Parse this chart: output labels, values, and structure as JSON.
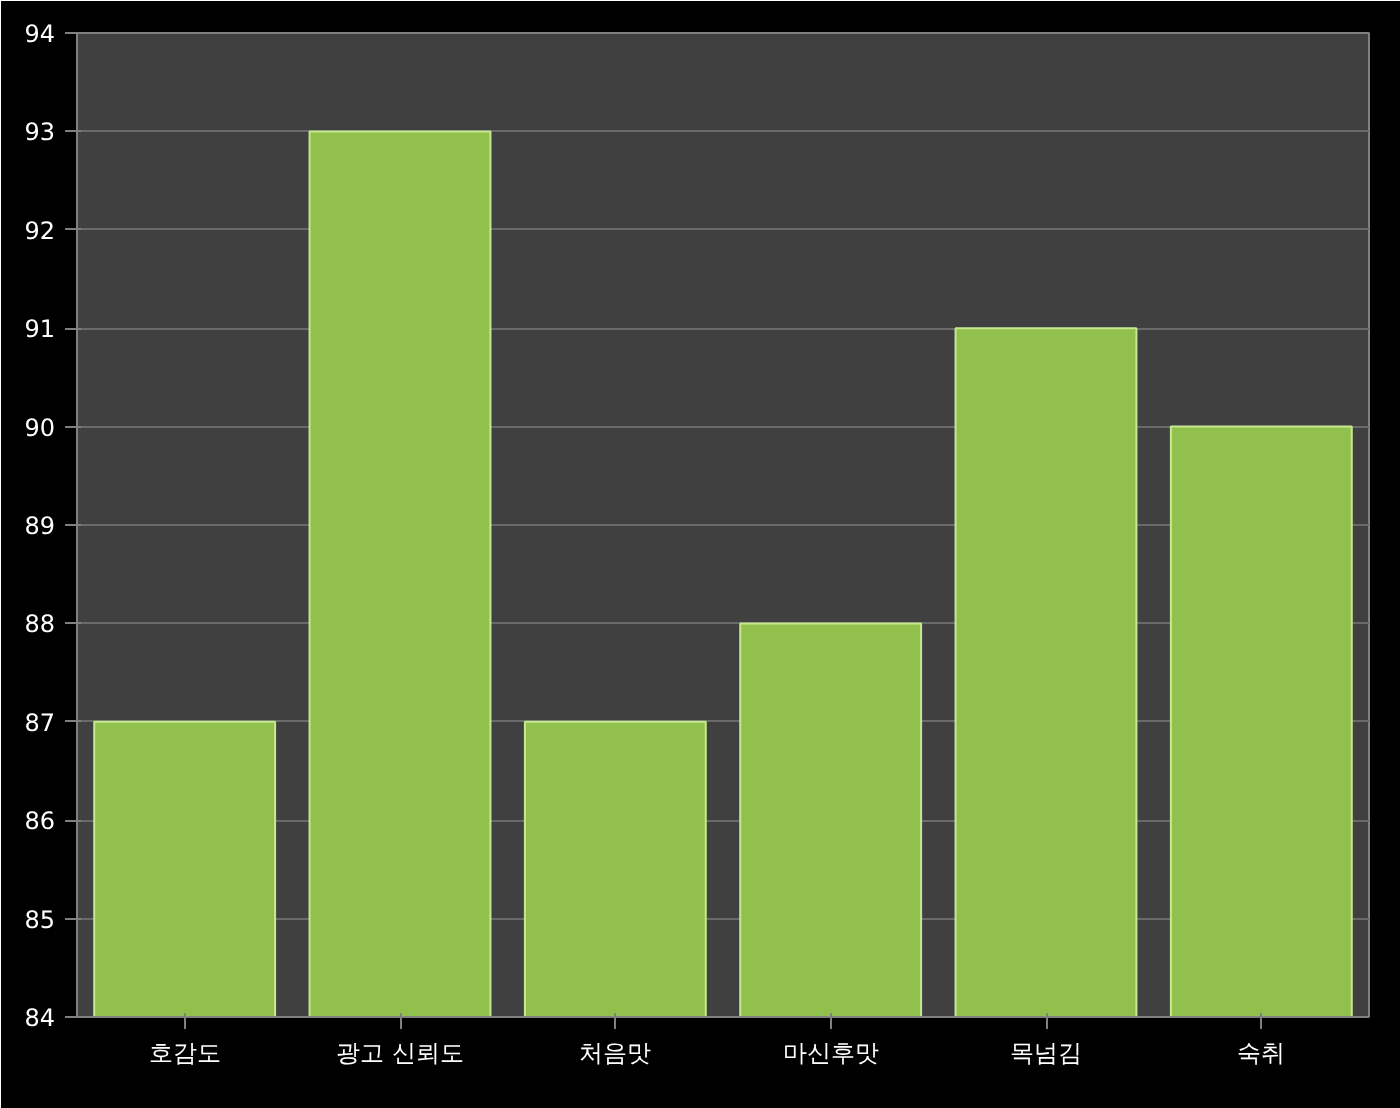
{
  "chart_data": {
    "type": "bar",
    "categories": [
      "호감도",
      "광고 신뢰도",
      "처음맛",
      "마신후맛",
      "목넘김",
      "숙취"
    ],
    "values": [
      87,
      93,
      87,
      88,
      91,
      90
    ],
    "color": "#92c04c",
    "ylim": [
      84,
      94
    ],
    "yticks": [
      84,
      85,
      86,
      87,
      88,
      89,
      90,
      91,
      92,
      93,
      94
    ],
    "grid": "y"
  }
}
